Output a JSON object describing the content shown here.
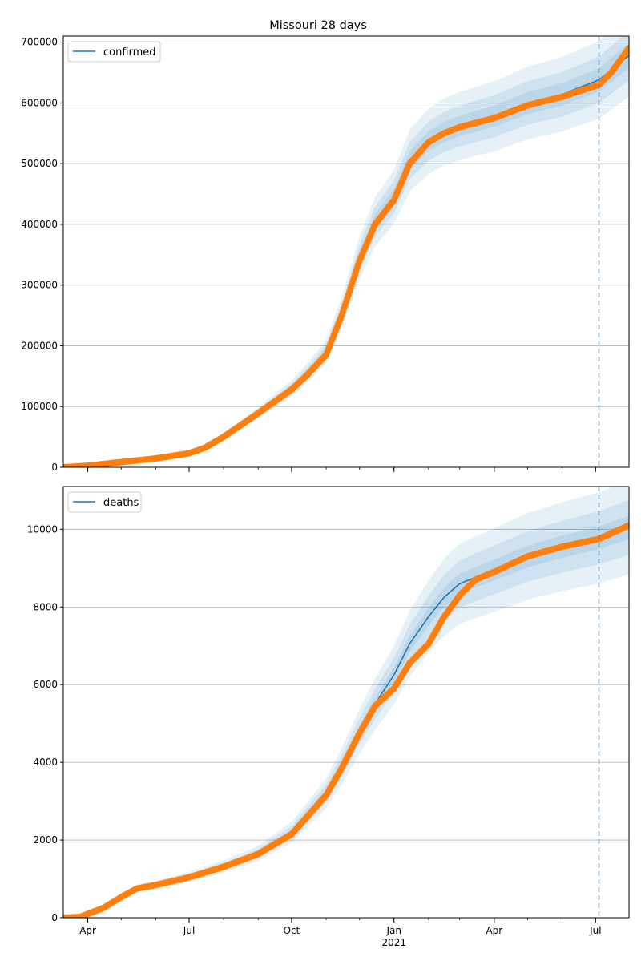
{
  "chart_data": [
    {
      "type": "line",
      "title": "Missouri 28 days",
      "legend": {
        "placement": "top-left",
        "entries": [
          "confirmed"
        ]
      },
      "grid": "y",
      "ylim": [
        0,
        710000
      ],
      "xlim": [
        "2020-03-10",
        "2021-07-31"
      ],
      "forecast_start": "2021-07-04",
      "y_ticks": [
        0,
        100000,
        200000,
        300000,
        400000,
        500000,
        600000,
        700000
      ],
      "x_ticks": [
        {
          "date": "2020-04-01",
          "label": ""
        },
        {
          "date": "2020-07-01",
          "label": ""
        },
        {
          "date": "2020-10-01",
          "label": ""
        },
        {
          "date": "2021-01-01",
          "label": ""
        },
        {
          "date": "2021-04-01",
          "label": ""
        },
        {
          "date": "2021-07-01",
          "label": ""
        }
      ],
      "model": {
        "name": "confirmed",
        "points": [
          [
            "2020-03-10",
            0
          ],
          [
            "2020-04-01",
            3000
          ],
          [
            "2020-05-01",
            9000
          ],
          [
            "2020-06-01",
            15000
          ],
          [
            "2020-07-01",
            24000
          ],
          [
            "2020-07-15",
            33000
          ],
          [
            "2020-08-01",
            52000
          ],
          [
            "2020-09-01",
            90000
          ],
          [
            "2020-10-01",
            130000
          ],
          [
            "2020-10-15",
            155000
          ],
          [
            "2020-11-01",
            190000
          ],
          [
            "2020-11-15",
            255000
          ],
          [
            "2020-12-01",
            345000
          ],
          [
            "2020-12-15",
            405000
          ],
          [
            "2021-01-01",
            445000
          ],
          [
            "2021-01-15",
            505000
          ],
          [
            "2021-02-01",
            537000
          ],
          [
            "2021-02-15",
            552000
          ],
          [
            "2021-03-01",
            562000
          ],
          [
            "2021-04-01",
            578000
          ],
          [
            "2021-05-01",
            600000
          ],
          [
            "2021-06-01",
            614000
          ],
          [
            "2021-07-04",
            638000
          ],
          [
            "2021-07-31",
            678000
          ]
        ],
        "band_pct": [
          0.03,
          0.06,
          0.1
        ]
      },
      "observed": {
        "points": [
          [
            "2020-03-10",
            0
          ],
          [
            "2020-04-01",
            2500
          ],
          [
            "2020-05-01",
            8500
          ],
          [
            "2020-06-01",
            14500
          ],
          [
            "2020-07-01",
            23000
          ],
          [
            "2020-07-15",
            32000
          ],
          [
            "2020-08-01",
            50000
          ],
          [
            "2020-09-01",
            89000
          ],
          [
            "2020-10-01",
            128000
          ],
          [
            "2020-10-15",
            152000
          ],
          [
            "2020-11-01",
            185000
          ],
          [
            "2020-11-15",
            250000
          ],
          [
            "2020-12-01",
            340000
          ],
          [
            "2020-12-15",
            400000
          ],
          [
            "2021-01-01",
            440000
          ],
          [
            "2021-01-15",
            500000
          ],
          [
            "2021-02-01",
            535000
          ],
          [
            "2021-02-15",
            550000
          ],
          [
            "2021-03-01",
            560000
          ],
          [
            "2021-04-01",
            575000
          ],
          [
            "2021-05-01",
            596000
          ],
          [
            "2021-06-01",
            610000
          ],
          [
            "2021-07-04",
            630000
          ],
          [
            "2021-07-15",
            650000
          ],
          [
            "2021-07-31",
            690000
          ]
        ]
      }
    },
    {
      "type": "line",
      "title": "",
      "legend": {
        "placement": "top-left",
        "entries": [
          "deaths"
        ]
      },
      "grid": "y",
      "ylim": [
        0,
        11100
      ],
      "xlim": [
        "2020-03-10",
        "2021-07-31"
      ],
      "forecast_start": "2021-07-04",
      "y_ticks": [
        0,
        2000,
        4000,
        6000,
        8000,
        10000
      ],
      "x_ticks": [
        {
          "date": "2020-04-01",
          "label": "Apr"
        },
        {
          "date": "2020-07-01",
          "label": "Jul"
        },
        {
          "date": "2020-10-01",
          "label": "Oct"
        },
        {
          "date": "2021-01-01",
          "label": "Jan"
        },
        {
          "date": "2021-04-01",
          "label": "Apr"
        },
        {
          "date": "2021-07-01",
          "label": "Jul"
        }
      ],
      "x_year_label": "2021",
      "model": {
        "name": "deaths",
        "points": [
          [
            "2020-03-10",
            0
          ],
          [
            "2020-03-25",
            30
          ],
          [
            "2020-04-15",
            260
          ],
          [
            "2020-05-01",
            540
          ],
          [
            "2020-05-15",
            760
          ],
          [
            "2020-06-01",
            850
          ],
          [
            "2020-07-01",
            1050
          ],
          [
            "2020-08-01",
            1320
          ],
          [
            "2020-09-01",
            1650
          ],
          [
            "2020-10-01",
            2200
          ],
          [
            "2020-11-01",
            3200
          ],
          [
            "2020-11-15",
            3900
          ],
          [
            "2020-12-01",
            4800
          ],
          [
            "2020-12-15",
            5500
          ],
          [
            "2021-01-01",
            6250
          ],
          [
            "2021-01-15",
            7050
          ],
          [
            "2021-02-01",
            7750
          ],
          [
            "2021-02-15",
            8250
          ],
          [
            "2021-03-01",
            8600
          ],
          [
            "2021-04-01",
            8950
          ],
          [
            "2021-05-01",
            9300
          ],
          [
            "2021-06-01",
            9550
          ],
          [
            "2021-07-04",
            9780
          ],
          [
            "2021-07-31",
            10050
          ]
        ],
        "band_pct": [
          0.03,
          0.07,
          0.12
        ]
      },
      "observed": {
        "points": [
          [
            "2020-03-10",
            0
          ],
          [
            "2020-03-25",
            20
          ],
          [
            "2020-04-15",
            250
          ],
          [
            "2020-05-01",
            530
          ],
          [
            "2020-05-15",
            750
          ],
          [
            "2020-06-01",
            840
          ],
          [
            "2020-07-01",
            1040
          ],
          [
            "2020-08-01",
            1310
          ],
          [
            "2020-09-01",
            1640
          ],
          [
            "2020-10-01",
            2150
          ],
          [
            "2020-11-01",
            3150
          ],
          [
            "2020-11-15",
            3850
          ],
          [
            "2020-12-01",
            4750
          ],
          [
            "2020-12-15",
            5450
          ],
          [
            "2021-01-01",
            5900
          ],
          [
            "2021-01-15",
            6550
          ],
          [
            "2021-02-01",
            7050
          ],
          [
            "2021-02-10",
            7500
          ],
          [
            "2021-02-15",
            7750
          ],
          [
            "2021-03-01",
            8300
          ],
          [
            "2021-03-15",
            8700
          ],
          [
            "2021-04-01",
            8900
          ],
          [
            "2021-05-01",
            9300
          ],
          [
            "2021-06-01",
            9550
          ],
          [
            "2021-07-04",
            9750
          ],
          [
            "2021-07-31",
            10100
          ]
        ]
      }
    }
  ]
}
